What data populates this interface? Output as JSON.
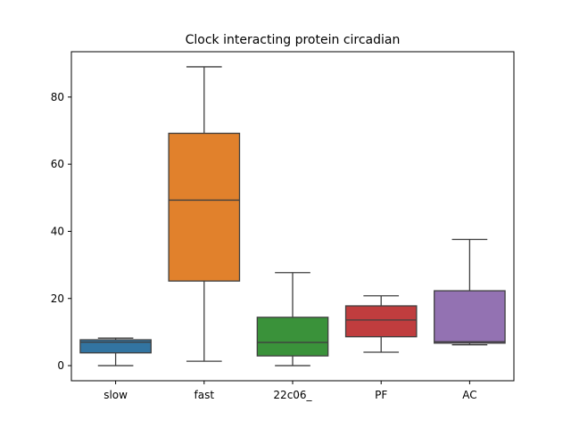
{
  "chart_data": {
    "type": "box",
    "title": "Clock interacting protein circadian",
    "xlabel": "",
    "ylabel": "",
    "ylim": [
      -4.5,
      93.5
    ],
    "yticks": [
      0,
      20,
      40,
      60,
      80
    ],
    "grid": false,
    "categories": [
      "slow",
      "fast",
      "22c06_",
      "PF",
      "AC"
    ],
    "boxes": [
      {
        "category": "slow",
        "whisker_low": 0.0,
        "q1": 3.8,
        "median": 7.0,
        "q3": 7.7,
        "whisker_high": 8.2,
        "color": "#3274a1"
      },
      {
        "category": "fast",
        "whisker_low": 1.3,
        "q1": 25.2,
        "median": 49.3,
        "q3": 69.2,
        "whisker_high": 89.0,
        "color": "#e1812c"
      },
      {
        "category": "22c06_",
        "whisker_low": 0.0,
        "q1": 2.9,
        "median": 6.9,
        "q3": 14.4,
        "whisker_high": 27.7,
        "color": "#3a923a"
      },
      {
        "category": "PF",
        "whisker_low": 4.0,
        "q1": 8.6,
        "median": 13.6,
        "q3": 17.8,
        "whisker_high": 20.8,
        "color": "#c03d3e"
      },
      {
        "category": "AC",
        "whisker_low": 6.2,
        "q1": 6.7,
        "median": 7.1,
        "q3": 22.3,
        "whisker_high": 37.6,
        "color": "#9372b2"
      }
    ]
  }
}
